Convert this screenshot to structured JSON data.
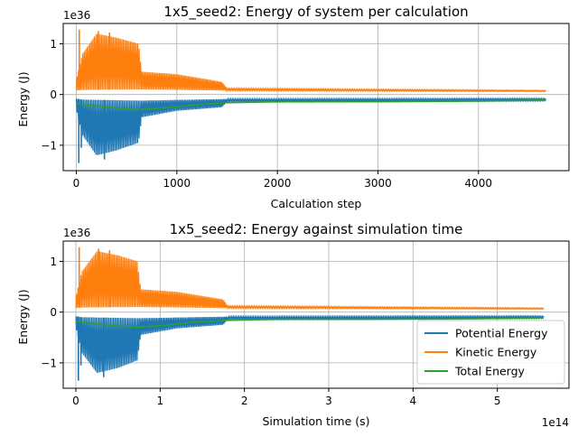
{
  "colors": {
    "potential": "#1f77b4",
    "kinetic": "#ff7f0e",
    "total": "#2ca02c",
    "grid": "#b0b0b0"
  },
  "chart_data": [
    {
      "type": "line",
      "title": "1x5_seed2: Energy of system per calculation",
      "xlabel": "Calculation step",
      "ylabel": "Energy (J)",
      "y_offset_text": "1e36",
      "x_offset_text": "",
      "xlim": [
        -130,
        4900
      ],
      "ylim": [
        -1.5,
        1.4
      ],
      "xticks": [
        0,
        1000,
        2000,
        3000,
        4000
      ],
      "xtick_labels": [
        "0",
        "1000",
        "2000",
        "3000",
        "4000"
      ],
      "yticks": [
        -1,
        0,
        1
      ],
      "ytick_labels": [
        "−1",
        "0",
        "1"
      ],
      "grid": true,
      "legend": null,
      "x_end": 4670,
      "series": [
        {
          "name": "Potential Energy",
          "color_key": "potential",
          "style": "oscillating",
          "baseline": [
            [
              0,
              -0.08
            ],
            [
              50,
              -0.1
            ],
            [
              640,
              -0.12
            ],
            [
              1450,
              -0.09
            ],
            [
              4670,
              -0.08
            ]
          ],
          "envelope": [
            [
              0,
              -0.3
            ],
            [
              60,
              -0.8
            ],
            [
              200,
              -1.2
            ],
            [
              400,
              -1.1
            ],
            [
              620,
              -0.95
            ],
            [
              650,
              -0.45
            ],
            [
              1000,
              -0.32
            ],
            [
              1450,
              -0.25
            ],
            [
              1500,
              -0.14
            ],
            [
              4670,
              -0.12
            ]
          ],
          "spikes": [
            [
              25,
              -1.35
            ],
            [
              50,
              -1.05
            ],
            [
              280,
              -1.28
            ]
          ]
        },
        {
          "name": "Kinetic Energy",
          "color_key": "kinetic",
          "style": "oscillating",
          "baseline": [
            [
              0,
              0.08
            ],
            [
              50,
              0.09
            ],
            [
              640,
              0.1
            ],
            [
              1450,
              0.08
            ],
            [
              4670,
              0.06
            ]
          ],
          "envelope": [
            [
              0,
              0.3
            ],
            [
              60,
              0.8
            ],
            [
              200,
              1.2
            ],
            [
              400,
              1.12
            ],
            [
              620,
              1.0
            ],
            [
              650,
              0.45
            ],
            [
              1000,
              0.4
            ],
            [
              1450,
              0.25
            ],
            [
              1500,
              0.12
            ],
            [
              4670,
              0.08
            ]
          ],
          "spikes": [
            [
              30,
              1.28
            ],
            [
              220,
              1.25
            ],
            [
              330,
              1.22
            ]
          ]
        },
        {
          "name": "Total Energy",
          "color_key": "total",
          "style": "smooth",
          "points": [
            [
              0,
              -0.18
            ],
            [
              300,
              -0.25
            ],
            [
              600,
              -0.3
            ],
            [
              900,
              -0.26
            ],
            [
              1200,
              -0.2
            ],
            [
              1500,
              -0.16
            ],
            [
              2000,
              -0.14
            ],
            [
              3000,
              -0.14
            ],
            [
              4000,
              -0.13
            ],
            [
              4670,
              -0.11
            ]
          ]
        }
      ]
    },
    {
      "type": "line",
      "title": "1x5_seed2: Energy against simulation time",
      "xlabel": "Simulation time (s)",
      "ylabel": "Energy (J)",
      "y_offset_text": "1e36",
      "x_offset_text": "1e14",
      "xlim": [
        -0.15,
        5.85
      ],
      "ylim": [
        -1.5,
        1.4
      ],
      "xticks": [
        0,
        1,
        2,
        3,
        4,
        5
      ],
      "xtick_labels": [
        "0",
        "1",
        "2",
        "3",
        "4",
        "5"
      ],
      "yticks": [
        -1,
        0,
        1
      ],
      "ytick_labels": [
        "−1",
        "0",
        "1"
      ],
      "grid": true,
      "legend": {
        "placement": "lower-right",
        "entries": [
          "Potential Energy",
          "Kinetic Energy",
          "Total Energy"
        ]
      },
      "x_end": 5.55,
      "series": [
        {
          "name": "Potential Energy",
          "color_key": "potential",
          "style": "oscillating",
          "baseline": [
            [
              0,
              -0.08
            ],
            [
              0.06,
              -0.1
            ],
            [
              0.75,
              -0.12
            ],
            [
              1.75,
              -0.09
            ],
            [
              5.55,
              -0.08
            ]
          ],
          "envelope": [
            [
              0,
              -0.3
            ],
            [
              0.07,
              -0.8
            ],
            [
              0.25,
              -1.2
            ],
            [
              0.5,
              -1.1
            ],
            [
              0.73,
              -0.95
            ],
            [
              0.77,
              -0.45
            ],
            [
              1.2,
              -0.32
            ],
            [
              1.75,
              -0.25
            ],
            [
              1.8,
              -0.14
            ],
            [
              5.55,
              -0.12
            ]
          ],
          "spikes": [
            [
              0.03,
              -1.35
            ],
            [
              0.06,
              -1.05
            ],
            [
              0.33,
              -1.28
            ]
          ]
        },
        {
          "name": "Kinetic Energy",
          "color_key": "kinetic",
          "style": "oscillating",
          "baseline": [
            [
              0,
              0.08
            ],
            [
              0.06,
              0.09
            ],
            [
              0.75,
              0.1
            ],
            [
              1.75,
              0.08
            ],
            [
              5.55,
              0.06
            ]
          ],
          "envelope": [
            [
              0,
              0.3
            ],
            [
              0.07,
              0.8
            ],
            [
              0.25,
              1.2
            ],
            [
              0.5,
              1.12
            ],
            [
              0.73,
              1.0
            ],
            [
              0.77,
              0.45
            ],
            [
              1.2,
              0.4
            ],
            [
              1.75,
              0.25
            ],
            [
              1.8,
              0.12
            ],
            [
              5.55,
              0.08
            ]
          ],
          "spikes": [
            [
              0.04,
              1.28
            ],
            [
              0.27,
              1.25
            ],
            [
              0.4,
              1.22
            ]
          ]
        },
        {
          "name": "Total Energy",
          "color_key": "total",
          "style": "smooth",
          "points": [
            [
              0,
              -0.18
            ],
            [
              0.35,
              -0.25
            ],
            [
              0.7,
              -0.3
            ],
            [
              1.05,
              -0.26
            ],
            [
              1.4,
              -0.2
            ],
            [
              1.8,
              -0.16
            ],
            [
              2.4,
              -0.14
            ],
            [
              3.5,
              -0.14
            ],
            [
              4.7,
              -0.13
            ],
            [
              5.55,
              -0.11
            ]
          ]
        }
      ]
    }
  ]
}
